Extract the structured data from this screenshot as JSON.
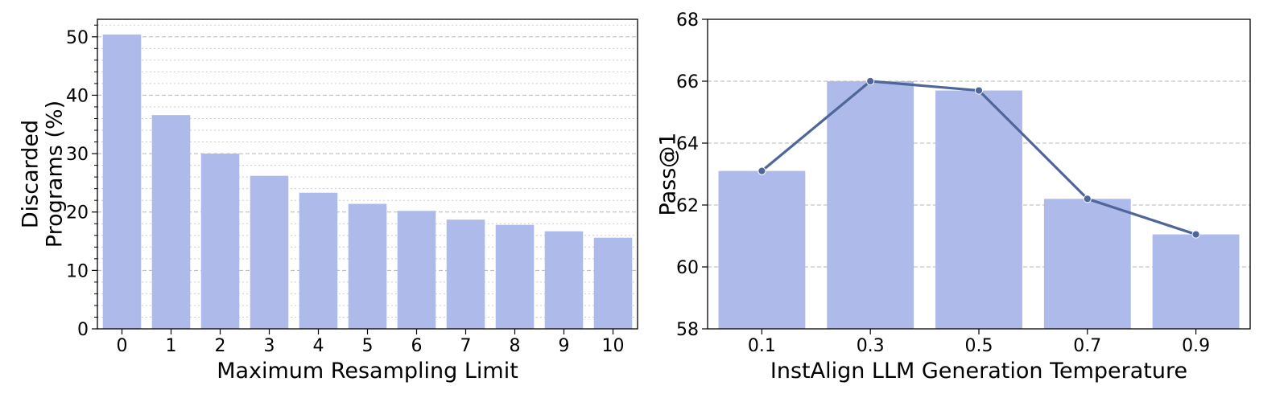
{
  "chart_data": [
    {
      "type": "bar",
      "xlabel": "Maximum Resampling Limit",
      "ylabel_lines": [
        "Discarded",
        "Programs (%)"
      ],
      "categories": [
        "0",
        "1",
        "2",
        "3",
        "4",
        "5",
        "6",
        "7",
        "8",
        "9",
        "10"
      ],
      "values": [
        50.4,
        36.6,
        30.0,
        26.2,
        23.3,
        21.4,
        20.2,
        18.7,
        17.8,
        16.7,
        15.6
      ],
      "ylim": [
        0,
        53
      ],
      "yticks": [
        "0",
        "10",
        "20",
        "30",
        "40",
        "50"
      ],
      "grid": "major dashed, minor dotted (horizontal)",
      "bar_color": "#aebbea"
    },
    {
      "type": "bar+line",
      "xlabel": "InstAlign LLM Generation Temperature",
      "ylabel_lines": [
        "Pass@1"
      ],
      "categories": [
        "0.1",
        "0.3",
        "0.5",
        "0.7",
        "0.9"
      ],
      "values": [
        63.1,
        66.0,
        65.7,
        62.2,
        61.05
      ],
      "line_values": [
        63.1,
        66.0,
        65.7,
        62.2,
        61.05
      ],
      "ylim": [
        58,
        68
      ],
      "yticks": [
        "58",
        "60",
        "62",
        "64",
        "66",
        "68"
      ],
      "grid": "major dashed (horizontal)",
      "bar_color": "#aebbea",
      "line_color": "#4e6699"
    }
  ]
}
